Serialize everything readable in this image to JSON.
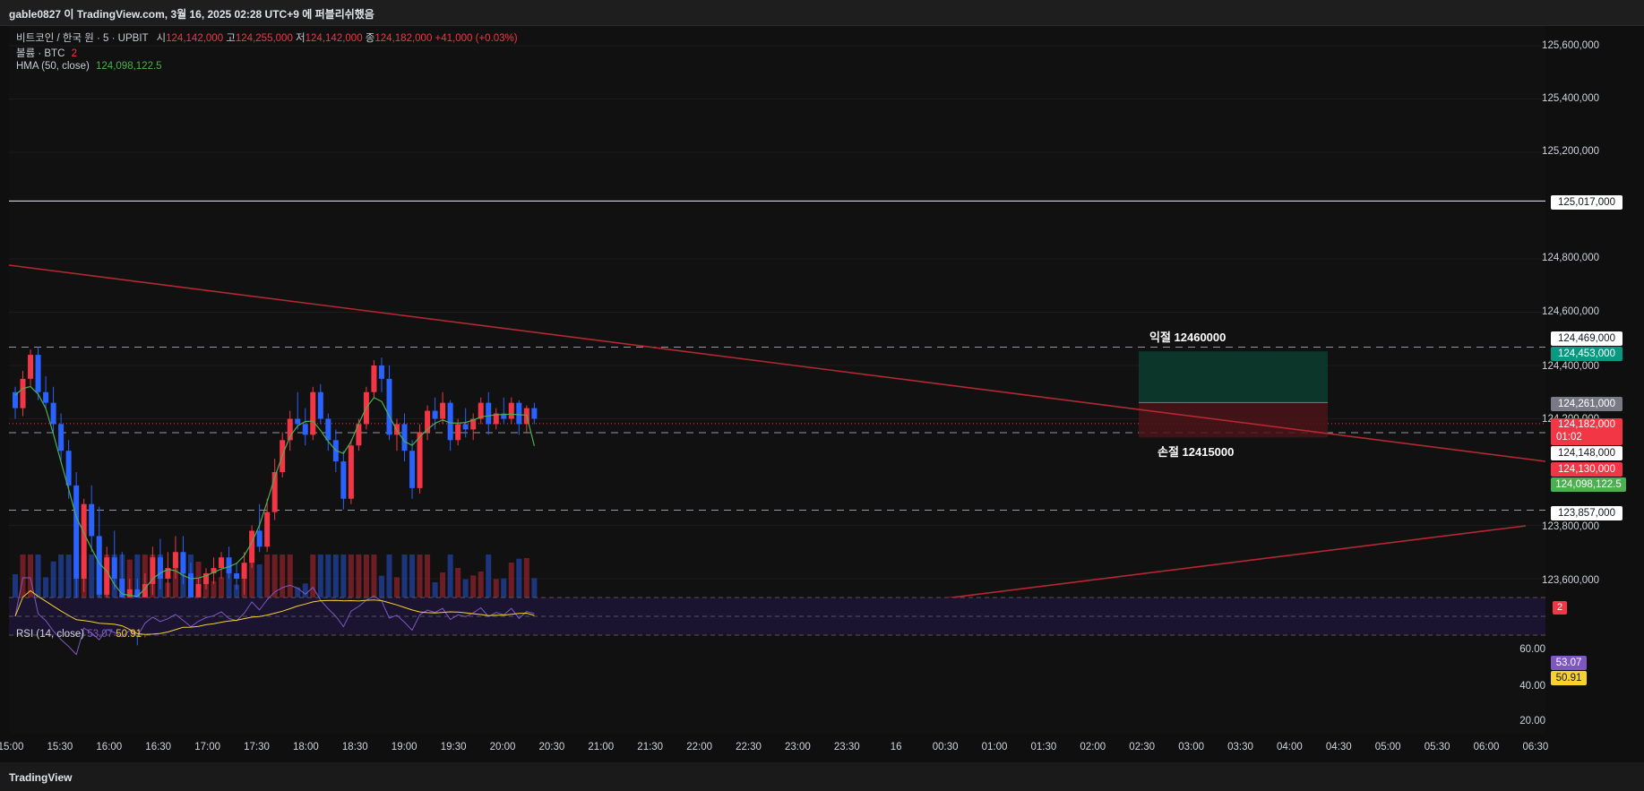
{
  "header": {
    "title": "gable0827 이 TradingView.com, 3월 16, 2025 02:28 UTC+9 에 퍼블리쉬했음"
  },
  "legend": {
    "symbol": "비트코인 / 한국 원 · 5 · UPBIT",
    "open_label": "시",
    "open": "124,142,000",
    "high_label": "고",
    "high": "124,255,000",
    "low_label": "저",
    "low": "124,142,000",
    "close_label": "종",
    "close": "124,182,000",
    "change": "+41,000 (+0.03%)",
    "volume_label": "볼륨 · BTC",
    "volume_value": "2",
    "hma_label": "HMA (50, close)",
    "hma_value": "124,098,122.5",
    "rsi_label": "RSI (14, close)",
    "rsi_value": "53.07",
    "rsi_ma": "50.91"
  },
  "price_axis": [
    "125,600,000",
    "125,400,000",
    "125,200,000",
    "124,800,000",
    "124,600,000",
    "124,400,000",
    "124,200,000",
    "123,800,000",
    "123,600,000"
  ],
  "price_tags": {
    "resistance": "125,017,000",
    "tp_level": "124,469,000",
    "tp_target": "124,453,000",
    "entry": "124,261,000",
    "last_price": "124,182,000",
    "countdown": "01:02",
    "sl_level": "124,148,000",
    "sl_target": "124,130,000",
    "hma": "124,098,122.5",
    "support": "123,857,000"
  },
  "volume_badge": "2",
  "rsi_axis": [
    "60.00",
    "40.00",
    "20.00"
  ],
  "rsi_tags": {
    "rsi": "53.07",
    "ma": "50.91"
  },
  "annotations": {
    "take_profit": "익절 12460000",
    "stop_loss": "손절 12415000"
  },
  "footer": {
    "brand": "TradingView"
  },
  "colors": {
    "up": "#f23645",
    "down": "#2962ff",
    "hma": "#4caf50",
    "trendline": "#b22833",
    "rsi": "#7e57c2",
    "rsi_ma": "#f7d12e"
  },
  "chart_data": {
    "type": "candlestick",
    "symbol": "KRW-BTC",
    "interval": "5",
    "ylim": [
      123500000,
      125700000
    ],
    "x_tick_labels": [
      "15:00",
      "15:30",
      "16:00",
      "16:30",
      "17:00",
      "17:30",
      "18:00",
      "18:30",
      "19:00",
      "19:30",
      "20:00",
      "20:30",
      "21:00",
      "21:30",
      "22:00",
      "22:30",
      "23:00",
      "23:30",
      "16",
      "00:30",
      "01:00",
      "01:30",
      "02:00",
      "02:30",
      "03:00",
      "03:30",
      "04:00",
      "04:30",
      "05:00",
      "05:30",
      "06:00",
      "06:30"
    ],
    "horizontal_levels": [
      125017000,
      124469000,
      124148000,
      123857000
    ],
    "candles": [
      [
        124300000,
        124320000,
        124200000,
        124240000
      ],
      [
        124240000,
        124380000,
        124210000,
        124350000
      ],
      [
        124350000,
        124460000,
        124320000,
        124440000
      ],
      [
        124440000,
        124470000,
        124270000,
        124300000
      ],
      [
        124300000,
        124360000,
        124240000,
        124260000
      ],
      [
        124260000,
        124320000,
        124150000,
        124180000
      ],
      [
        124180000,
        124220000,
        124040000,
        124080000
      ],
      [
        124080000,
        124120000,
        123900000,
        123950000
      ],
      [
        123950000,
        124000000,
        123500000,
        123600000
      ],
      [
        123600000,
        123900000,
        123550000,
        123880000
      ],
      [
        123880000,
        123950000,
        123700000,
        123760000
      ],
      [
        123760000,
        123870000,
        123480000,
        123540000
      ],
      [
        123540000,
        123720000,
        123500000,
        123680000
      ],
      [
        123680000,
        123780000,
        123560000,
        123600000
      ],
      [
        123600000,
        123700000,
        123420000,
        123480000
      ],
      [
        123480000,
        123600000,
        123400000,
        123560000
      ],
      [
        123560000,
        123600000,
        123350000,
        123400000
      ],
      [
        123400000,
        123620000,
        123380000,
        123580000
      ],
      [
        123580000,
        123720000,
        123540000,
        123680000
      ],
      [
        123680000,
        123750000,
        123560000,
        123600000
      ],
      [
        123600000,
        123700000,
        123480000,
        123640000
      ],
      [
        123640000,
        123760000,
        123600000,
        123700000
      ],
      [
        123700000,
        123760000,
        123580000,
        123620000
      ],
      [
        123620000,
        123660000,
        123480000,
        123520000
      ],
      [
        123520000,
        123600000,
        123470000,
        123580000
      ],
      [
        123580000,
        123640000,
        123560000,
        123620000
      ],
      [
        123620000,
        123680000,
        123580000,
        123640000
      ],
      [
        123640000,
        123700000,
        123600000,
        123680000
      ],
      [
        123680000,
        123720000,
        123600000,
        123620000
      ],
      [
        123620000,
        123660000,
        123560000,
        123600000
      ],
      [
        123600000,
        123700000,
        123540000,
        123660000
      ],
      [
        123660000,
        123800000,
        123640000,
        123780000
      ],
      [
        123780000,
        123880000,
        123700000,
        123720000
      ],
      [
        123720000,
        123900000,
        123700000,
        123850000
      ],
      [
        123850000,
        124050000,
        123820000,
        124000000
      ],
      [
        124000000,
        124150000,
        123980000,
        124120000
      ],
      [
        124120000,
        124230000,
        124080000,
        124200000
      ],
      [
        124200000,
        124300000,
        124160000,
        124180000
      ],
      [
        124180000,
        124240000,
        124100000,
        124140000
      ],
      [
        124140000,
        124320000,
        124120000,
        124300000
      ],
      [
        124300000,
        124330000,
        124180000,
        124200000
      ],
      [
        124200000,
        124220000,
        124080000,
        124120000
      ],
      [
        124120000,
        124160000,
        124000000,
        124040000
      ],
      [
        124040000,
        124080000,
        123860000,
        123900000
      ],
      [
        123900000,
        124120000,
        123880000,
        124100000
      ],
      [
        124100000,
        124200000,
        124080000,
        124180000
      ],
      [
        124180000,
        124320000,
        124160000,
        124300000
      ],
      [
        124300000,
        124420000,
        124280000,
        124400000
      ],
      [
        124400000,
        124430000,
        124300000,
        124350000
      ],
      [
        124350000,
        124400000,
        124120000,
        124140000
      ],
      [
        124140000,
        124200000,
        124080000,
        124180000
      ],
      [
        124180000,
        124220000,
        124040000,
        124080000
      ],
      [
        124080000,
        124120000,
        123900000,
        123940000
      ],
      [
        123940000,
        124180000,
        123920000,
        124150000
      ],
      [
        124150000,
        124250000,
        124120000,
        124230000
      ],
      [
        124230000,
        124280000,
        124160000,
        124200000
      ],
      [
        124200000,
        124300000,
        124180000,
        124260000
      ],
      [
        124260000,
        124270000,
        124080000,
        124120000
      ],
      [
        124120000,
        124200000,
        124100000,
        124180000
      ],
      [
        124180000,
        124240000,
        124130000,
        124160000
      ],
      [
        124160000,
        124220000,
        124120000,
        124200000
      ],
      [
        124200000,
        124280000,
        124180000,
        124260000
      ],
      [
        124260000,
        124300000,
        124140000,
        124180000
      ],
      [
        124180000,
        124240000,
        124160000,
        124220000
      ],
      [
        124220000,
        124280000,
        124180000,
        124200000
      ],
      [
        124200000,
        124280000,
        124180000,
        124260000
      ],
      [
        124260000,
        124270000,
        124140000,
        124180000
      ],
      [
        124180000,
        124250000,
        124150000,
        124240000
      ],
      [
        124240000,
        124260000,
        124180000,
        124200000
      ]
    ],
    "hma": {
      "last_value": 124098122.5
    },
    "rsi": {
      "period": 14,
      "last": 53.07,
      "ma_last": 50.91,
      "levels": [
        70,
        50,
        30
      ],
      "axis_ticks": [
        60,
        40,
        20
      ]
    },
    "annotations": [
      {
        "label": "익절 12460000",
        "price": 124460000
      },
      {
        "label": "손절 12415000",
        "price": 124150000
      }
    ]
  }
}
